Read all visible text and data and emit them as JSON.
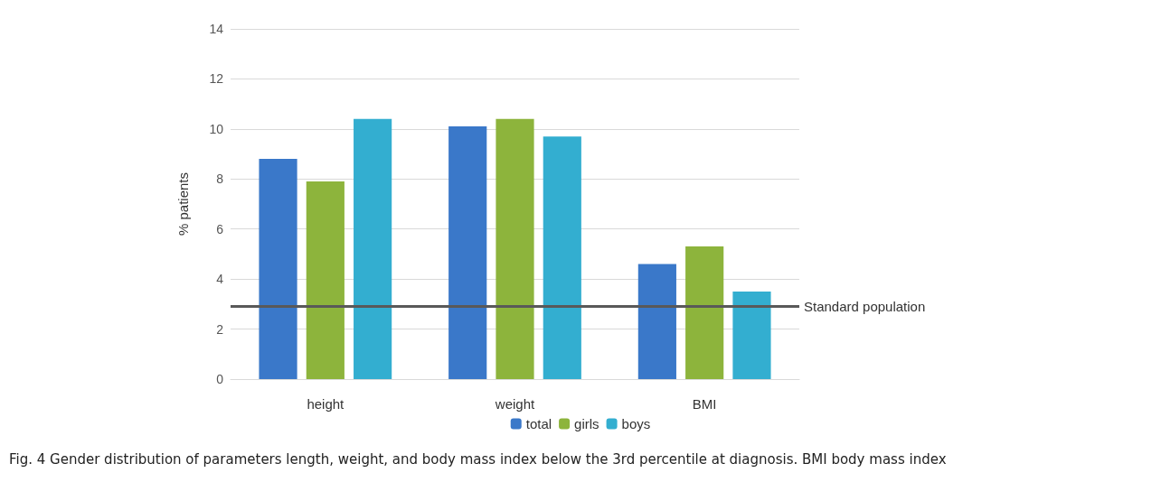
{
  "chart_data": {
    "type": "bar",
    "ylabel": "% patients",
    "categories": [
      "height",
      "weight",
      "BMI"
    ],
    "series": [
      {
        "name": "total",
        "color": "#3a78c9",
        "values": [
          8.8,
          10.1,
          4.6
        ]
      },
      {
        "name": "girls",
        "color": "#8db43c",
        "values": [
          7.9,
          10.4,
          5.3
        ]
      },
      {
        "name": "boys",
        "color": "#33aed0",
        "values": [
          10.4,
          9.7,
          3.5
        ]
      }
    ],
    "ylim": [
      0,
      14
    ],
    "yticks": [
      0,
      2,
      4,
      6,
      8,
      10,
      12,
      14
    ],
    "grid": "y",
    "legend": "bottom",
    "ref_lines": [
      {
        "axis": "y",
        "value": 2.9,
        "label": "Standard population",
        "color": "#595959"
      }
    ],
    "annotations": [
      "Fig. 4  Gender distribution of parameters length, weight, and body mass index below the 3rd percentile at diagnosis. BMI body mass index"
    ]
  }
}
